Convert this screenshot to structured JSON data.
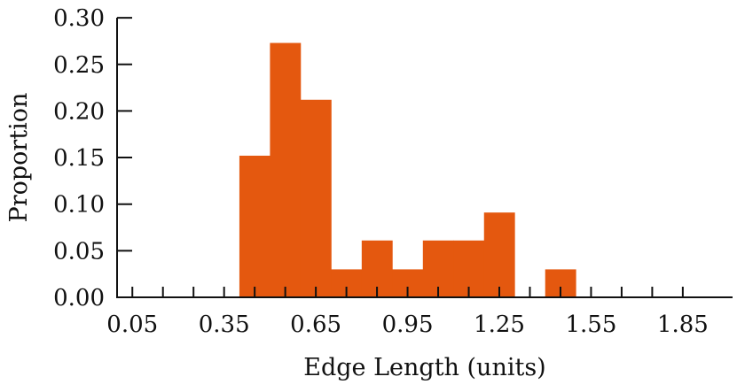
{
  "chart_data": {
    "type": "bar",
    "title": "",
    "xlabel": "Edge Length (units)",
    "ylabel": "Proportion",
    "xlim": [
      0.0,
      1.9
    ],
    "ylim": [
      0.0,
      0.3
    ],
    "x_ticks": [
      0.05,
      0.35,
      0.65,
      0.95,
      1.25,
      1.55,
      1.85
    ],
    "x_tick_labels": [
      "0.05",
      "0.35",
      "0.65",
      "0.95",
      "1.25",
      "1.55",
      "1.85"
    ],
    "y_ticks": [
      0.0,
      0.05,
      0.1,
      0.15,
      0.2,
      0.25,
      0.3
    ],
    "y_tick_labels": [
      "0.00",
      "0.05",
      "0.10",
      "0.15",
      "0.20",
      "0.25",
      "0.30"
    ],
    "bar_color": "#e4580f",
    "bin_width": 0.1,
    "bins": [
      {
        "start": 0.4,
        "value": 0.152
      },
      {
        "start": 0.5,
        "value": 0.273
      },
      {
        "start": 0.6,
        "value": 0.212
      },
      {
        "start": 0.7,
        "value": 0.03
      },
      {
        "start": 0.8,
        "value": 0.061
      },
      {
        "start": 0.9,
        "value": 0.03
      },
      {
        "start": 1.0,
        "value": 0.061
      },
      {
        "start": 1.1,
        "value": 0.061
      },
      {
        "start": 1.2,
        "value": 0.091
      },
      {
        "start": 1.4,
        "value": 0.03
      }
    ],
    "grid": false,
    "legend": "none"
  }
}
